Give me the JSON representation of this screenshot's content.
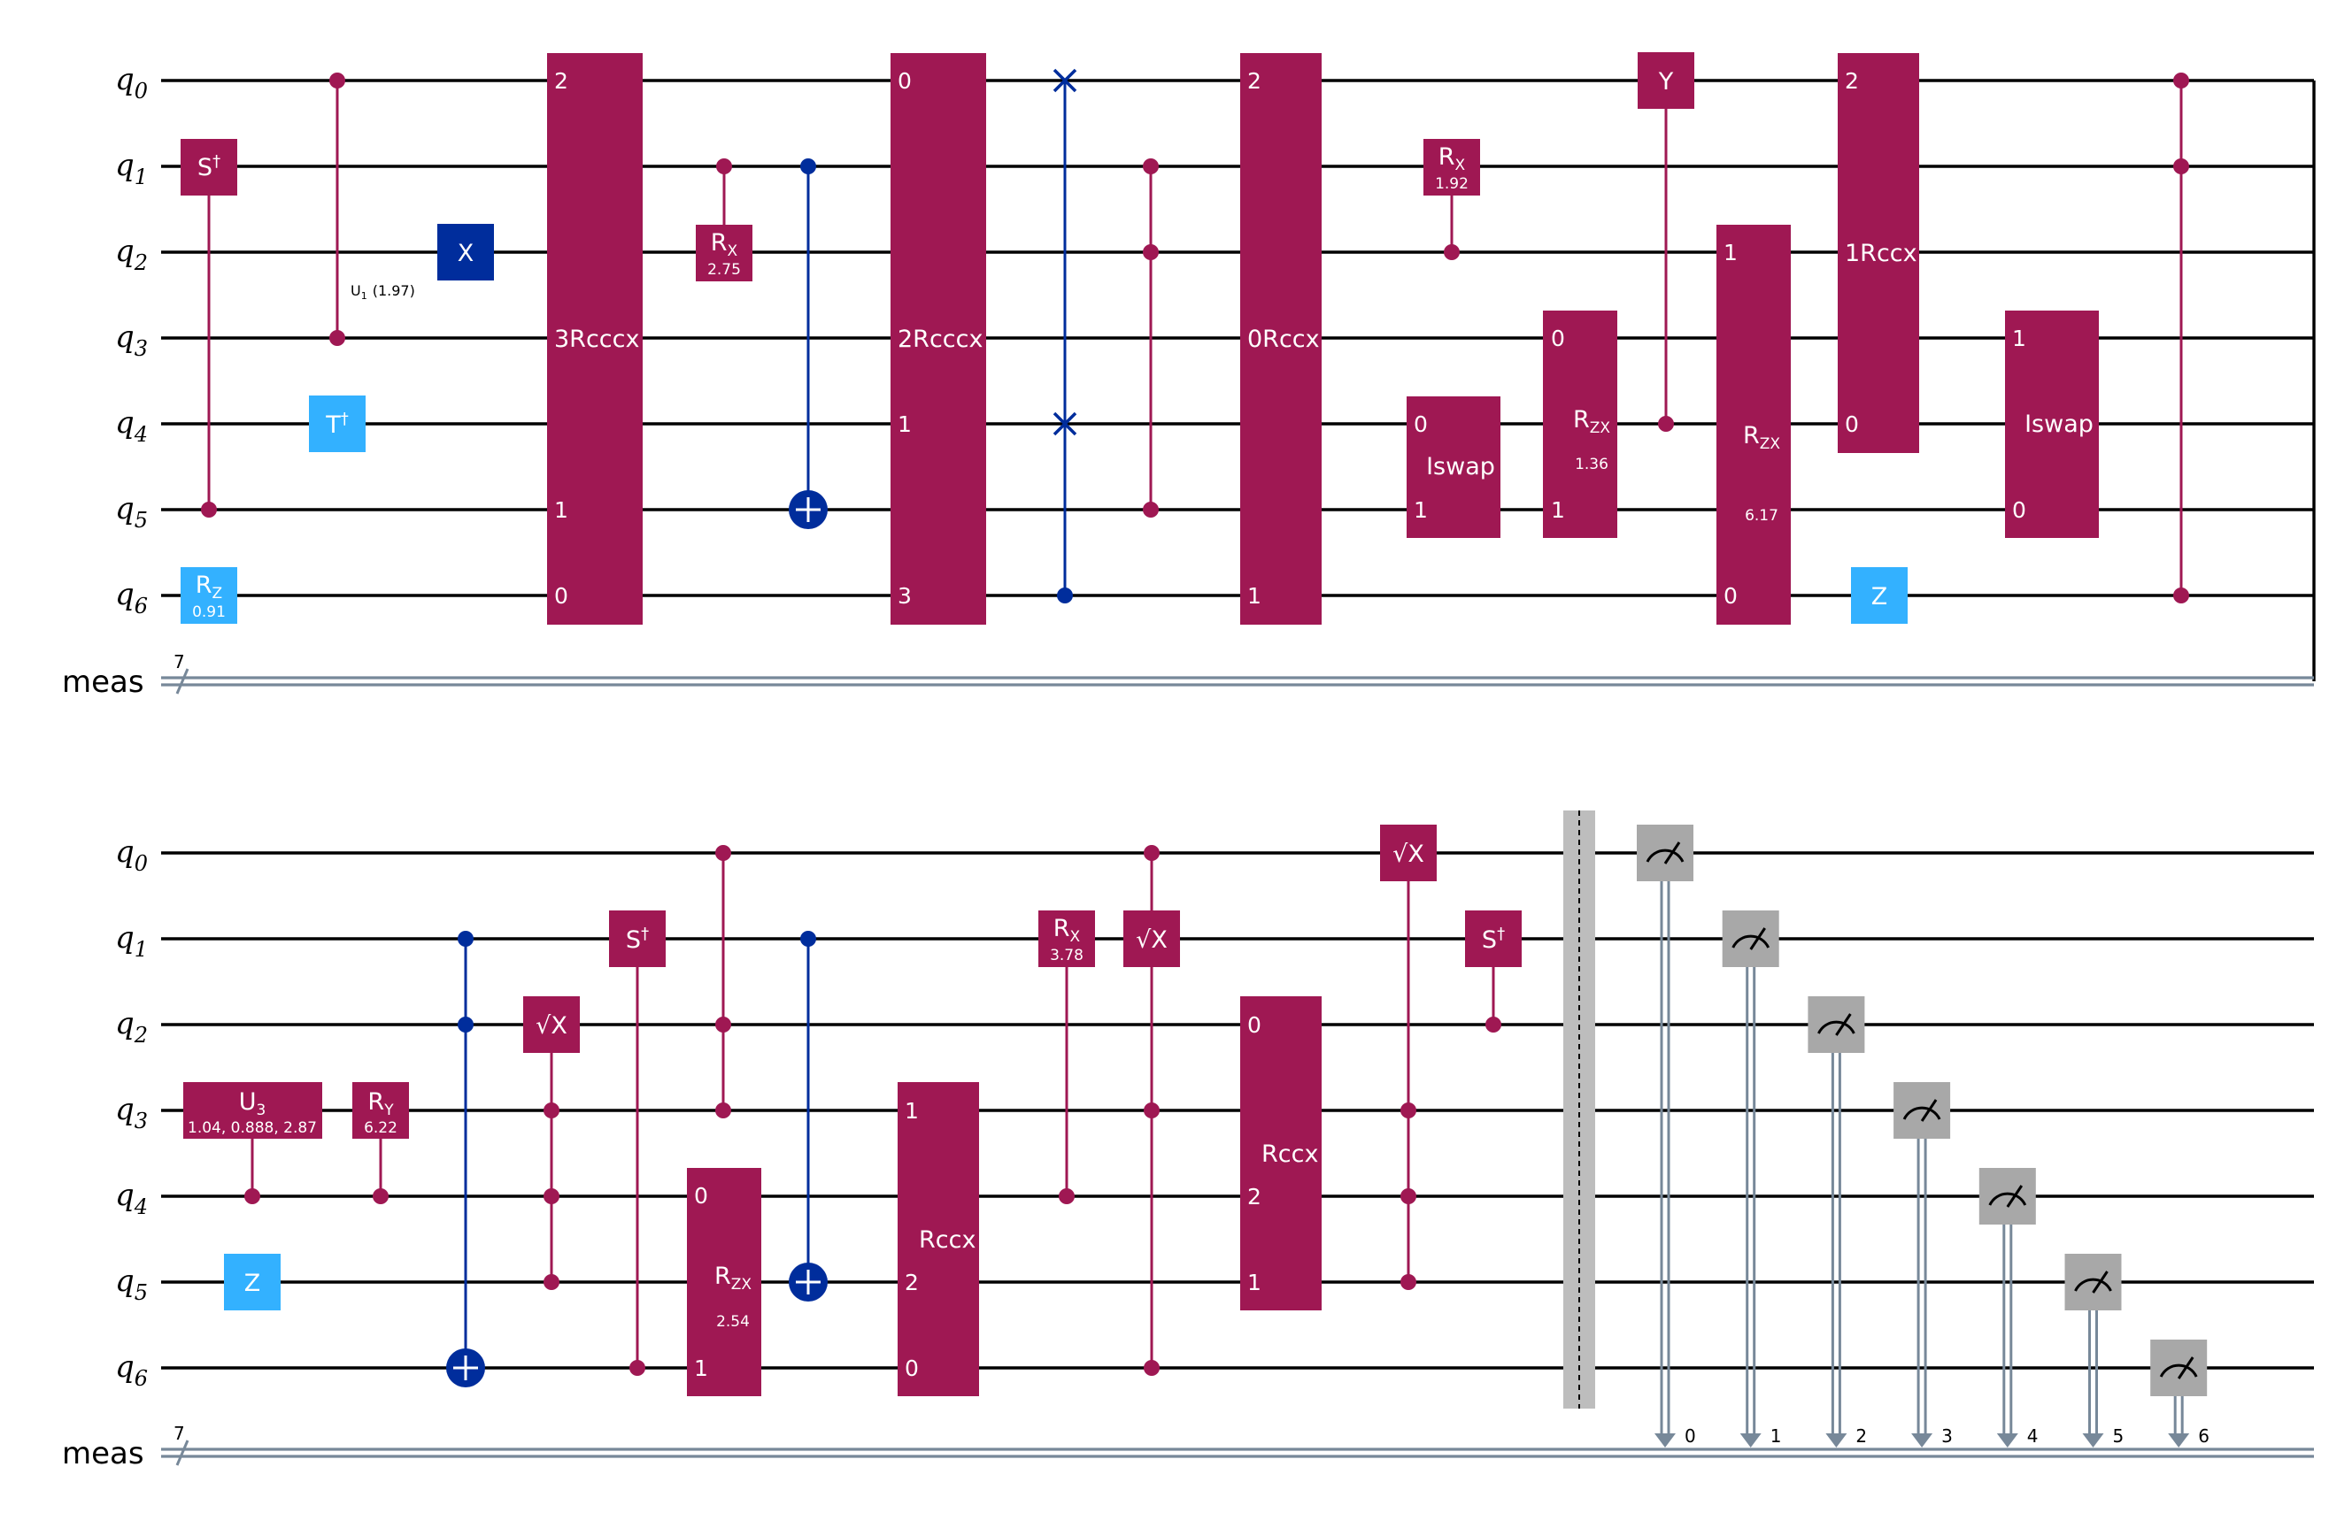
{
  "colors": {
    "wire": "#000000",
    "classical": "#778899",
    "multi": "#9f1853",
    "blue": "#002d9c",
    "light": "#33b1ff",
    "measure": "#a8a8a8",
    "barrier": "#bdbdbd"
  },
  "panels": [
    {
      "qubits": [
        "q",
        "q",
        "q",
        "q",
        "q",
        "q",
        "q"
      ],
      "qubit_subscripts": [
        "0",
        "1",
        "2",
        "3",
        "4",
        "5",
        "6"
      ],
      "classical_label": "meas",
      "classical_width": "7",
      "gates": [
        {
          "id": "sdg-top",
          "label": "S",
          "sup": "†",
          "kind": "single"
        },
        {
          "id": "rz-top",
          "label": "R",
          "sub": "Z",
          "param": "0.91"
        },
        {
          "id": "u1-anno",
          "label": "U",
          "sub": "1",
          "param": "(1.97)"
        },
        {
          "id": "tdg-top",
          "label": "T",
          "sup": "†"
        },
        {
          "id": "x-top",
          "label": "X"
        },
        {
          "id": "rcccx-a",
          "label": "3Rcccx",
          "pins": [
            "2",
            "1",
            "0"
          ]
        },
        {
          "id": "rx-a",
          "label": "R",
          "sub": "X",
          "param": "2.75"
        },
        {
          "id": "rcccx-b",
          "label": "2Rcccx",
          "pins": [
            "0",
            "1",
            "3"
          ]
        },
        {
          "id": "rccx-c",
          "label": "0Rccx",
          "pins": [
            "2",
            "1"
          ]
        },
        {
          "id": "rx-b",
          "label": "R",
          "sub": "X",
          "param": "1.92"
        },
        {
          "id": "iswap-a",
          "label": "Iswap",
          "pins": [
            "0",
            "1"
          ]
        },
        {
          "id": "rzx-a",
          "label": "R",
          "sub": "ZX",
          "param": "1.36",
          "pins": [
            "0",
            "1"
          ]
        },
        {
          "id": "y-top",
          "label": "Y"
        },
        {
          "id": "rzx-b",
          "label": "R",
          "sub": "ZX",
          "param": "6.17",
          "pins": [
            "1",
            "0"
          ]
        },
        {
          "id": "rccx-d",
          "label": "1Rccx",
          "pins": [
            "2",
            "0"
          ]
        },
        {
          "id": "z-top",
          "label": "Z"
        },
        {
          "id": "iswap-b",
          "label": "Iswap",
          "pins": [
            "1",
            "0"
          ]
        }
      ]
    },
    {
      "qubits": [
        "q",
        "q",
        "q",
        "q",
        "q",
        "q",
        "q"
      ],
      "qubit_subscripts": [
        "0",
        "1",
        "2",
        "3",
        "4",
        "5",
        "6"
      ],
      "classical_label": "meas",
      "classical_width": "7",
      "gates": [
        {
          "id": "u3-bot",
          "label": "U",
          "sub": "3",
          "param": "1.04, 0.888, 2.87"
        },
        {
          "id": "z-bot",
          "label": "Z"
        },
        {
          "id": "ry-bot",
          "label": "R",
          "sub": "Y",
          "param": "6.22"
        },
        {
          "id": "sx-a",
          "label": "√X"
        },
        {
          "id": "sdg-a",
          "label": "S",
          "sup": "†"
        },
        {
          "id": "rzx-c",
          "label": "R",
          "sub": "ZX",
          "param": "2.54",
          "pins": [
            "0",
            "1"
          ]
        },
        {
          "id": "rccx-e",
          "label": "Rccx",
          "pins": [
            "1",
            "2",
            "0"
          ]
        },
        {
          "id": "rx-c",
          "label": "R",
          "sub": "X",
          "param": "3.78"
        },
        {
          "id": "sx-b",
          "label": "√X"
        },
        {
          "id": "rccx-f",
          "label": "Rccx",
          "pins": [
            "0",
            "2",
            "1"
          ]
        },
        {
          "id": "sx-c",
          "label": "√X"
        },
        {
          "id": "sdg-b",
          "label": "S",
          "sup": "†"
        }
      ],
      "measure_bits": [
        "0",
        "1",
        "2",
        "3",
        "4",
        "5",
        "6"
      ]
    }
  ]
}
